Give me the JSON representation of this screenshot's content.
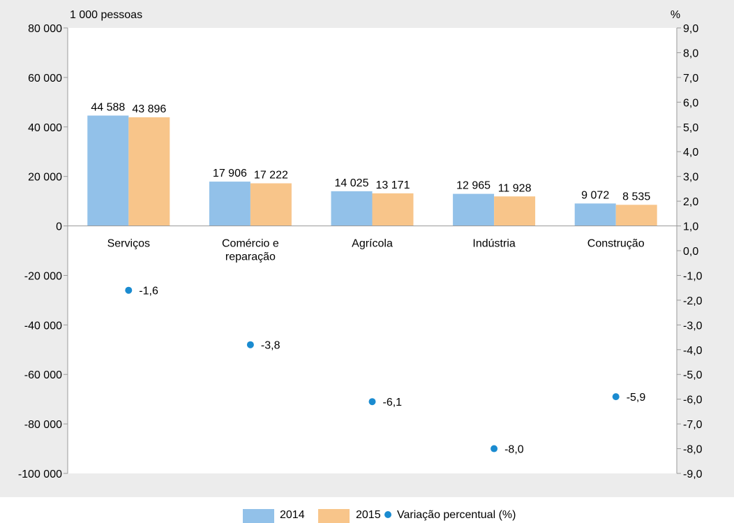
{
  "chart_data": {
    "type": "bar",
    "categories": [
      [
        "Serviços"
      ],
      [
        "Comércio e",
        "reparação"
      ],
      [
        "Agrícola"
      ],
      [
        "Indústria"
      ],
      [
        "Construção"
      ]
    ],
    "series": [
      {
        "name": "2014",
        "values": [
          44588,
          17906,
          14025,
          12965,
          9072
        ],
        "labels": [
          "44 588",
          "17 906",
          "14 025",
          "12 965",
          "9 072"
        ],
        "color": "#92c1e9"
      },
      {
        "name": "2015",
        "values": [
          43896,
          17222,
          13171,
          11928,
          8535
        ],
        "labels": [
          "43 896",
          "17 222",
          "13 171",
          "11 928",
          "8 535"
        ],
        "color": "#f8c58a"
      }
    ],
    "secondary_series": {
      "name": "Variação percentual (%)",
      "type": "scatter",
      "axis": "right",
      "values": [
        -1.6,
        -3.8,
        -6.1,
        -8.0,
        -5.9
      ],
      "labels": [
        "-1,6",
        "-3,8",
        "-6,1",
        "-8,0",
        "-5,9"
      ],
      "color": "#1a8bd0"
    },
    "left_axis": {
      "unit_label": "1 000 pessoas",
      "ylim": [
        -100000,
        80000
      ],
      "ticks": [
        80000,
        60000,
        40000,
        20000,
        0,
        -20000,
        -40000,
        -60000,
        -80000,
        -100000
      ],
      "tick_labels": [
        "80 000",
        "60 000",
        "40 000",
        "20 000",
        "0",
        "-20 000",
        "-40 000",
        "-60 000",
        "-80 000",
        "-100 000"
      ]
    },
    "right_axis": {
      "unit_label": "%",
      "ylim": [
        -9,
        9
      ],
      "ticks": [
        9,
        8,
        7,
        6,
        5,
        4,
        3,
        2,
        1,
        0,
        -1,
        -2,
        -3,
        -4,
        -5,
        -6,
        -7,
        -8,
        -9
      ],
      "tick_labels": [
        "9,0",
        "8,0",
        "7,0",
        "6,0",
        "5,0",
        "4,0",
        "3,0",
        "2,0",
        "1,0",
        "0,0",
        "-1,0",
        "-2,0",
        "-3,0",
        "-4,0",
        "-5,0",
        "-6,0",
        "-7,0",
        "-8,0",
        "-9,0"
      ]
    },
    "legend": {
      "placement": "bottom-center"
    },
    "grid": false,
    "colors": {
      "background": "#ececec",
      "plot": "#ffffff",
      "axis": "#9a9a9a"
    }
  }
}
